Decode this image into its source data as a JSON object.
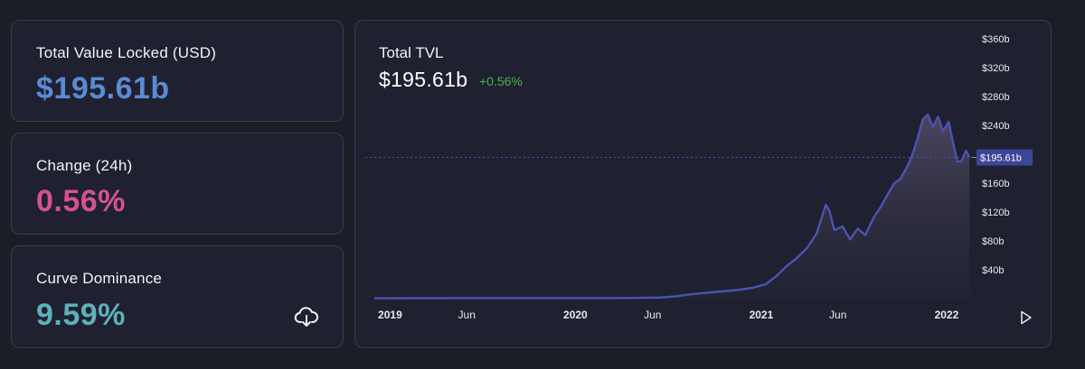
{
  "colors": {
    "tvl_value": "#5b8ad6",
    "change_value": "#d45193",
    "dominance_value": "#5fb0bb",
    "positive_change": "#4caf50",
    "line": "#4a54b2",
    "current_label_bg": "#3b4699"
  },
  "stats": {
    "tvl": {
      "title": "Total Value Locked (USD)",
      "value": "$195.61b"
    },
    "change": {
      "title": "Change (24h)",
      "value": "0.56%"
    },
    "dominance": {
      "title": "Curve Dominance",
      "value": "9.59%",
      "download_icon": "cloud-download-icon"
    }
  },
  "chart": {
    "title": "Total TVL",
    "value": "$195.61b",
    "change": "+0.56%",
    "current_label": "$195.61b",
    "play_icon": "play-icon"
  },
  "chart_data": {
    "type": "area",
    "title": "Total TVL",
    "y_unit": "USD billions",
    "ylim": [
      0,
      360
    ],
    "yticks": [
      40,
      80,
      120,
      160,
      240,
      280,
      320,
      360
    ],
    "ytick_labels": [
      "$40b",
      "$80b",
      "$120b",
      "$160b",
      "$240b",
      "$280b",
      "$320b",
      "$360b"
    ],
    "xlim": [
      "2018-12-01",
      "2022-02-20"
    ],
    "xtick_dates": [
      "2019-01-01",
      "2019-06-01",
      "2020-01-01",
      "2020-06-01",
      "2021-01-01",
      "2021-06-01",
      "2022-01-01"
    ],
    "xtick_labels": [
      "2019",
      "Jun",
      "2020",
      "Jun",
      "2021",
      "Jun",
      "2022"
    ],
    "current_value": 195.61,
    "grid": false,
    "legend": "none",
    "series": [
      {
        "x": [
          "2018-12-01",
          "2019-03-01",
          "2019-06-01",
          "2019-09-01",
          "2019-12-01",
          "2020-03-01",
          "2020-05-01",
          "2020-06-15",
          "2020-07-15",
          "2020-08-15",
          "2020-09-15",
          "2020-10-15",
          "2020-11-15",
          "2020-12-15",
          "2021-01-10",
          "2021-02-01",
          "2021-02-20",
          "2021-03-10",
          "2021-04-01",
          "2021-04-20",
          "2021-05-08",
          "2021-05-15",
          "2021-05-25",
          "2021-06-10",
          "2021-06-25",
          "2021-07-10",
          "2021-07-25",
          "2021-08-10",
          "2021-08-25",
          "2021-09-05",
          "2021-09-20",
          "2021-10-01",
          "2021-10-15",
          "2021-10-25",
          "2021-11-05",
          "2021-11-15",
          "2021-11-25",
          "2021-12-05",
          "2021-12-15",
          "2021-12-25",
          "2022-01-05",
          "2022-01-15",
          "2022-01-22",
          "2022-01-30",
          "2022-02-08",
          "2022-02-15"
        ],
        "y": [
          0.5,
          0.6,
          0.7,
          0.8,
          0.7,
          0.8,
          1.0,
          1.5,
          3,
          6,
          8,
          10,
          12,
          15,
          20,
          32,
          45,
          55,
          70,
          90,
          130,
          122,
          95,
          100,
          82,
          97,
          88,
          112,
          128,
          142,
          160,
          165,
          182,
          198,
          222,
          248,
          255,
          238,
          252,
          232,
          245,
          212,
          190,
          190,
          205,
          196
        ]
      }
    ]
  }
}
